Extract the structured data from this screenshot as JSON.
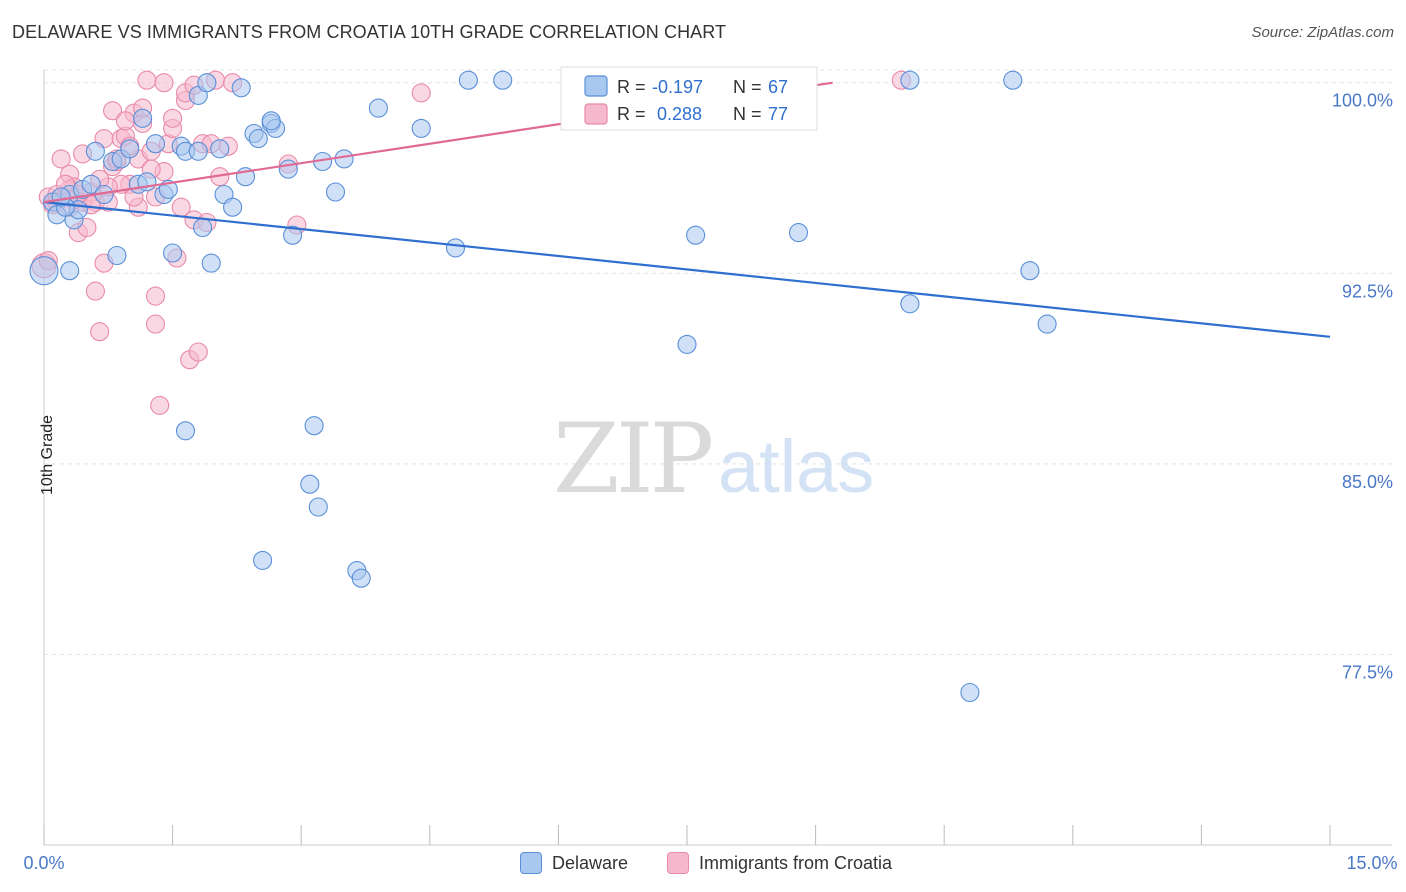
{
  "title": "DELAWARE VS IMMIGRANTS FROM CROATIA 10TH GRADE CORRELATION CHART",
  "source": "Source: ZipAtlas.com",
  "watermark": {
    "zip": "ZIP",
    "atlas": "atlas"
  },
  "colors": {
    "blue_fill": "#a9c8f0",
    "blue_stroke": "#5a8fd8",
    "blue_line": "#2e6fcf",
    "pink_fill": "#f6b8cc",
    "pink_stroke": "#e98aa9",
    "pink_line": "#e06a93",
    "tick_label": "#4a78c8",
    "grid": "#e4e4e4"
  },
  "legend_top": {
    "rows": [
      {
        "r_label": "R =",
        "r_value": "-0.197",
        "n_label": "N =",
        "n_value": "67",
        "series": "blue"
      },
      {
        "r_label": "R =",
        "r_value": "0.288",
        "n_label": "N =",
        "n_value": "77",
        "series": "pink"
      }
    ]
  },
  "legend_bottom": {
    "items": [
      {
        "label": "Delaware",
        "series": "blue"
      },
      {
        "label": "Immigrants from Croatia",
        "series": "pink"
      }
    ]
  },
  "chart_data": {
    "type": "scatter",
    "title": "DELAWARE VS IMMIGRANTS FROM CROATIA 10TH GRADE CORRELATION CHART",
    "xlabel": "",
    "ylabel": "10th Grade",
    "xlim": [
      0,
      15
    ],
    "ylim": [
      70.0,
      100.5
    ],
    "x_tick_labels": [
      "0.0%",
      "15.0%"
    ],
    "y_ticks": [
      77.5,
      85.0,
      92.5,
      100.0
    ],
    "y_tick_labels": [
      "77.5%",
      "85.0%",
      "92.5%",
      "100.0%"
    ],
    "grid": true,
    "legend_position": "top-center",
    "series": [
      {
        "name": "Delaware",
        "color": "blue",
        "trend": {
          "x": [
            0.0,
            15.0
          ],
          "y": [
            95.3,
            90.0
          ]
        },
        "points": [
          [
            0.0,
            92.6,
            14
          ],
          [
            0.1,
            95.3,
            9
          ],
          [
            0.15,
            94.8,
            9
          ],
          [
            0.3,
            92.6,
            9
          ],
          [
            0.3,
            95.6,
            9
          ],
          [
            0.35,
            94.6,
            9
          ],
          [
            0.4,
            95.0,
            9
          ],
          [
            0.45,
            95.8,
            9
          ],
          [
            0.55,
            96.0,
            9
          ],
          [
            0.6,
            97.3,
            9
          ],
          [
            0.7,
            95.6,
            9
          ],
          [
            0.8,
            96.9,
            9
          ],
          [
            0.85,
            93.2,
            9
          ],
          [
            0.9,
            97.0,
            9
          ],
          [
            1.0,
            97.4,
            9
          ],
          [
            1.1,
            96.0,
            9
          ],
          [
            1.15,
            98.6,
            9
          ],
          [
            1.2,
            96.1,
            9
          ],
          [
            1.3,
            97.6,
            9
          ],
          [
            1.4,
            95.6,
            9
          ],
          [
            1.45,
            95.8,
            9
          ],
          [
            1.5,
            93.3,
            9
          ],
          [
            1.6,
            97.5,
            9
          ],
          [
            1.65,
            86.3,
            9
          ],
          [
            1.65,
            97.3,
            9
          ],
          [
            1.8,
            99.5,
            9
          ],
          [
            1.85,
            94.3,
            9
          ],
          [
            1.9,
            100.0,
            9
          ],
          [
            1.95,
            92.9,
            9
          ],
          [
            2.05,
            97.4,
            9
          ],
          [
            2.1,
            95.6,
            9
          ],
          [
            2.2,
            95.1,
            9
          ],
          [
            2.3,
            99.8,
            9
          ],
          [
            2.35,
            96.3,
            9
          ],
          [
            2.45,
            98.0,
            9
          ],
          [
            2.5,
            97.8,
            9
          ],
          [
            2.55,
            81.2,
            9
          ],
          [
            2.65,
            98.4,
            9
          ],
          [
            2.7,
            98.2,
            9
          ],
          [
            2.85,
            96.6,
            9
          ],
          [
            2.9,
            94.0,
            9
          ],
          [
            3.1,
            84.2,
            9
          ],
          [
            3.15,
            86.5,
            9
          ],
          [
            3.2,
            83.3,
            9
          ],
          [
            3.25,
            96.9,
            9
          ],
          [
            3.4,
            95.7,
            9
          ],
          [
            3.5,
            97.0,
            9
          ],
          [
            3.65,
            80.8,
            9
          ],
          [
            3.7,
            80.5,
            9
          ],
          [
            3.9,
            99.0,
            9
          ],
          [
            4.4,
            98.2,
            9
          ],
          [
            4.8,
            93.5,
            9
          ],
          [
            4.95,
            100.1,
            9
          ],
          [
            5.35,
            100.1,
            9
          ],
          [
            7.5,
            89.7,
            9
          ],
          [
            7.6,
            94.0,
            9
          ],
          [
            8.8,
            94.1,
            9
          ],
          [
            10.1,
            91.3,
            9
          ],
          [
            10.1,
            100.1,
            9
          ],
          [
            10.8,
            76.0,
            9
          ],
          [
            11.3,
            100.1,
            9
          ],
          [
            11.5,
            92.6,
            9
          ],
          [
            11.7,
            90.5,
            9
          ],
          [
            0.25,
            95.1,
            9
          ],
          [
            0.2,
            95.5,
            9
          ],
          [
            1.8,
            97.3,
            9
          ],
          [
            2.65,
            98.5,
            9
          ]
        ]
      },
      {
        "name": "Immigrants from Croatia",
        "color": "pink",
        "trend": {
          "x": [
            0.0,
            9.2
          ],
          "y": [
            95.3,
            100.0
          ]
        },
        "points": [
          [
            0.0,
            92.8,
            12
          ],
          [
            0.05,
            95.5,
            9
          ],
          [
            0.1,
            95.2,
            9
          ],
          [
            0.15,
            95.6,
            9
          ],
          [
            0.2,
            97.0,
            9
          ],
          [
            0.25,
            95.5,
            9
          ],
          [
            0.3,
            96.4,
            9
          ],
          [
            0.3,
            95.1,
            9
          ],
          [
            0.35,
            95.9,
            9
          ],
          [
            0.4,
            94.1,
            9
          ],
          [
            0.45,
            95.3,
            9
          ],
          [
            0.5,
            94.3,
            9
          ],
          [
            0.55,
            95.7,
            9
          ],
          [
            0.6,
            91.8,
            9
          ],
          [
            0.6,
            95.3,
            9
          ],
          [
            0.65,
            90.2,
            9
          ],
          [
            0.7,
            97.8,
            9
          ],
          [
            0.7,
            92.9,
            9
          ],
          [
            0.75,
            95.3,
            9
          ],
          [
            0.8,
            96.7,
            9
          ],
          [
            0.8,
            98.9,
            9
          ],
          [
            0.85,
            96.9,
            9
          ],
          [
            0.9,
            97.8,
            9
          ],
          [
            0.95,
            97.9,
            9
          ],
          [
            1.0,
            96.0,
            9
          ],
          [
            1.05,
            98.8,
            9
          ],
          [
            1.1,
            95.1,
            9
          ],
          [
            1.1,
            97.0,
            9
          ],
          [
            1.15,
            98.4,
            9
          ],
          [
            1.2,
            100.1,
            9
          ],
          [
            1.25,
            97.3,
            9
          ],
          [
            1.3,
            91.6,
            9
          ],
          [
            1.3,
            90.5,
            9
          ],
          [
            1.35,
            87.3,
            9
          ],
          [
            1.4,
            100.0,
            9
          ],
          [
            1.45,
            97.6,
            9
          ],
          [
            1.5,
            98.2,
            9
          ],
          [
            1.55,
            93.1,
            9
          ],
          [
            1.6,
            95.1,
            9
          ],
          [
            1.65,
            99.3,
            9
          ],
          [
            1.7,
            89.1,
            9
          ],
          [
            1.75,
            94.6,
            9
          ],
          [
            1.8,
            89.4,
            9
          ],
          [
            1.85,
            97.6,
            9
          ],
          [
            1.9,
            94.5,
            9
          ],
          [
            2.0,
            100.1,
            9
          ],
          [
            2.05,
            96.3,
            9
          ],
          [
            1.95,
            97.6,
            9
          ],
          [
            2.2,
            100.0,
            9
          ],
          [
            2.85,
            96.8,
            9
          ],
          [
            2.95,
            94.4,
            9
          ],
          [
            4.4,
            99.6,
            9
          ],
          [
            7.55,
            98.5,
            9
          ],
          [
            10.0,
            100.1,
            9
          ],
          [
            0.3,
            95.8,
            9
          ],
          [
            0.9,
            96.0,
            9
          ],
          [
            1.05,
            95.5,
            9
          ],
          [
            0.55,
            95.2,
            9
          ],
          [
            1.5,
            98.6,
            9
          ],
          [
            1.65,
            99.6,
            9
          ],
          [
            1.3,
            95.5,
            9
          ],
          [
            0.45,
            97.2,
            9
          ],
          [
            0.35,
            95.4,
            9
          ],
          [
            0.75,
            95.9,
            9
          ],
          [
            1.15,
            99.0,
            9
          ],
          [
            0.65,
            96.2,
            9
          ],
          [
            0.85,
            97.0,
            9
          ],
          [
            1.0,
            97.5,
            9
          ],
          [
            0.25,
            96.0,
            9
          ],
          [
            0.95,
            98.5,
            9
          ],
          [
            1.75,
            99.9,
            9
          ],
          [
            1.4,
            96.5,
            9
          ],
          [
            0.15,
            95.3,
            9
          ],
          [
            0.4,
            95.6,
            9
          ],
          [
            2.15,
            97.5,
            9
          ],
          [
            1.25,
            96.6,
            9
          ],
          [
            0.05,
            93.0,
            9
          ]
        ]
      }
    ]
  }
}
